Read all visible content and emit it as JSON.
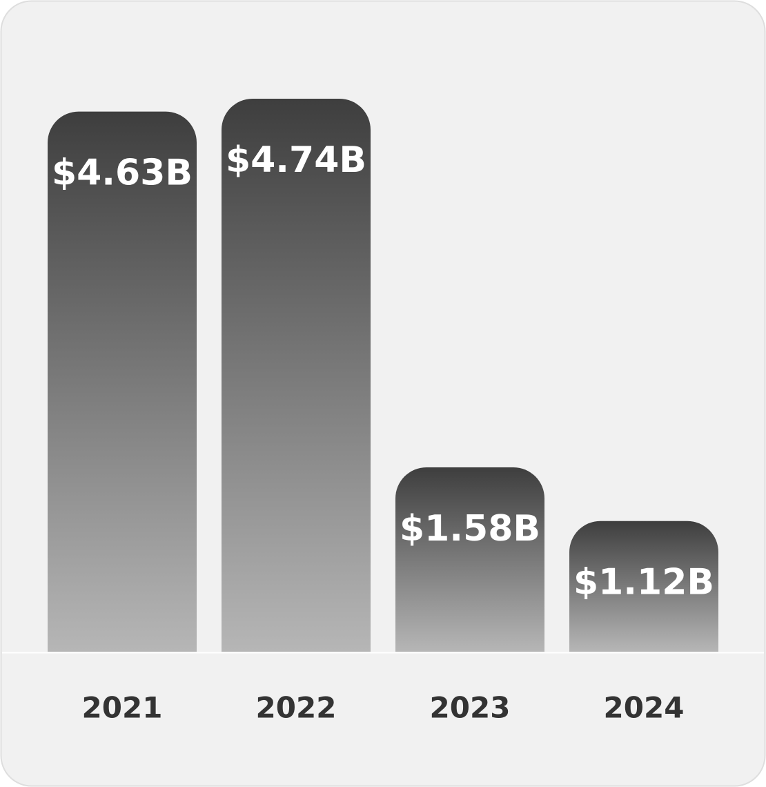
{
  "chart_data": {
    "type": "bar",
    "categories": [
      "2021",
      "2022",
      "2023",
      "2024"
    ],
    "values": [
      4.63,
      4.74,
      1.58,
      1.12
    ],
    "value_labels": [
      "$4.63B",
      "$4.74B",
      "$1.58B",
      "$1.12B"
    ]
  }
}
